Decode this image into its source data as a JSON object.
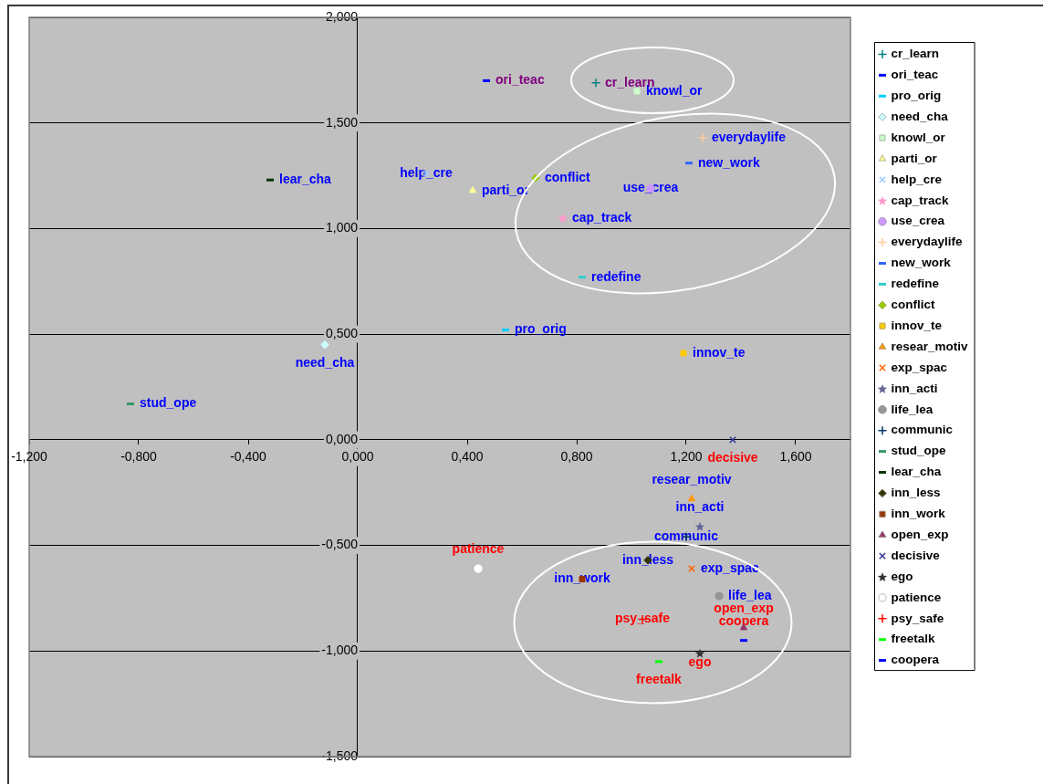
{
  "chart_data": {
    "type": "scatter",
    "xlim": [
      -1.2,
      1.8
    ],
    "ylim": [
      -1.5,
      2
    ],
    "xticks": [
      {
        "value": -1.2,
        "label": "-1,200"
      },
      {
        "value": -0.8,
        "label": "-0,800"
      },
      {
        "value": -0.4,
        "label": "-0,400"
      },
      {
        "value": 0,
        "label": "0,000"
      },
      {
        "value": 0.4,
        "label": "0,400"
      },
      {
        "value": 0.8,
        "label": "0,800"
      },
      {
        "value": 1.2,
        "label": "1,200"
      },
      {
        "value": 1.6,
        "label": "1,600"
      }
    ],
    "yticks": [
      {
        "value": -1.5,
        "label": "-1,500"
      },
      {
        "value": -1,
        "label": "-1,000"
      },
      {
        "value": -0.5,
        "label": "-0,500"
      },
      {
        "value": 0,
        "label": "0,000"
      },
      {
        "value": 0.5,
        "label": "0,500"
      },
      {
        "value": 1,
        "label": "1,000"
      },
      {
        "value": 1.5,
        "label": "1,500"
      },
      {
        "value": 2,
        "label": "2,000"
      }
    ],
    "grid": "y",
    "legend": "right",
    "series": [
      {
        "name": "cr_learn",
        "color": "#008080",
        "marker": "cross",
        "x": [
          0.87
        ],
        "values": [
          1.69
        ]
      },
      {
        "name": "ori_teac",
        "color": "#0000ff",
        "x": [
          0.47
        ],
        "values": [
          1.7
        ]
      },
      {
        "name": "pro_orig",
        "color": "#00ccff",
        "x": [
          0.54
        ],
        "values": [
          0.52
        ]
      },
      {
        "name": "need_cha",
        "color": "#ccffff",
        "marker": "diamond",
        "x": [
          -0.12
        ],
        "values": [
          0.45
        ]
      },
      {
        "name": "knowl_or",
        "color": "#ccffcc",
        "marker": "square",
        "x": [
          1.02
        ],
        "values": [
          1.65
        ]
      },
      {
        "name": "parti_or",
        "color": "#ffff99",
        "marker": "triangle",
        "x": [
          0.42
        ],
        "values": [
          1.18
        ]
      },
      {
        "name": "help_cre",
        "color": "#99ccff",
        "marker": "x",
        "x": [
          0.25
        ],
        "values": [
          1.26
        ]
      },
      {
        "name": "cap_track",
        "color": "#ff99cc",
        "marker": "star",
        "x": [
          0.75
        ],
        "values": [
          1.05
        ]
      },
      {
        "name": "use_crea",
        "color": "#cc99ff",
        "marker": "circle",
        "x": [
          1.07
        ],
        "values": [
          1.19
        ]
      },
      {
        "name": "everydaylife",
        "color": "#ffcc99",
        "marker": "cross",
        "x": [
          1.26
        ],
        "values": [
          1.43
        ]
      },
      {
        "name": "new_work",
        "color": "#3366ff",
        "x": [
          1.21
        ],
        "values": [
          1.31
        ]
      },
      {
        "name": "redefine",
        "color": "#33cccc",
        "x": [
          0.82
        ],
        "values": [
          0.77
        ]
      },
      {
        "name": "conflict",
        "color": "#99cc00",
        "marker": "diamond",
        "x": [
          0.65
        ],
        "values": [
          1.24
        ]
      },
      {
        "name": "innov_te",
        "color": "#ffcc00",
        "marker": "square",
        "x": [
          1.19
        ],
        "values": [
          0.41
        ]
      },
      {
        "name": "resear_motiv",
        "color": "#ff9900",
        "marker": "triangle",
        "x": [
          1.22
        ],
        "values": [
          -0.28
        ]
      },
      {
        "name": "exp_spac",
        "color": "#ff6600",
        "marker": "x",
        "x": [
          1.22
        ],
        "values": [
          -0.61
        ]
      },
      {
        "name": "inn_acti",
        "color": "#666699",
        "marker": "star",
        "x": [
          1.25
        ],
        "values": [
          -0.41
        ]
      },
      {
        "name": "life_lea",
        "color": "#969696",
        "marker": "circle",
        "x": [
          1.32
        ],
        "values": [
          -0.74
        ]
      },
      {
        "name": "communic",
        "color": "#003366",
        "marker": "cross",
        "x": [
          1.2
        ],
        "values": [
          -0.46
        ]
      },
      {
        "name": "stud_ope",
        "color": "#339966",
        "x": [
          -0.83
        ],
        "values": [
          0.17
        ]
      },
      {
        "name": "lear_cha",
        "color": "#003300",
        "x": [
          -0.32
        ],
        "values": [
          1.23
        ]
      },
      {
        "name": "inn_less",
        "color": "#333300",
        "marker": "diamond",
        "x": [
          1.06
        ],
        "values": [
          -0.57
        ]
      },
      {
        "name": "inn_work",
        "color": "#993300",
        "marker": "square",
        "x": [
          0.82
        ],
        "values": [
          -0.66
        ]
      },
      {
        "name": "open_exp",
        "color": "#993366",
        "marker": "triangle",
        "x": [
          1.41
        ],
        "values": [
          -0.89
        ]
      },
      {
        "name": "decisive",
        "color": "#333399",
        "marker": "x",
        "x": [
          1.37
        ],
        "values": [
          0
        ]
      },
      {
        "name": "ego",
        "color": "#333333",
        "marker": "star",
        "x": [
          1.25
        ],
        "values": [
          -1.01
        ]
      },
      {
        "name": "patience",
        "color": "#ffffff",
        "marker": "circle",
        "x": [
          0.44
        ],
        "values": [
          -0.61
        ]
      },
      {
        "name": "psy_safe",
        "color": "#ff0000",
        "marker": "cross",
        "x": [
          1.04
        ],
        "values": [
          -0.85
        ]
      },
      {
        "name": "freetalk",
        "color": "#00ff00",
        "x": [
          1.1
        ],
        "values": [
          -1.05
        ]
      },
      {
        "name": "coopera",
        "color": "#0000ff",
        "x": [
          1.41
        ],
        "values": [
          -0.95
        ]
      }
    ],
    "annotations": [
      {
        "text": "cr_learn",
        "x": 0.87,
        "y": 1.69
      },
      {
        "text": "ori_teac",
        "x": 0.47,
        "y": 1.7
      },
      {
        "text": "pro_orig",
        "x": 0.54,
        "y": 0.52
      },
      {
        "text": "need_cha",
        "x": -0.12,
        "y": 0.45
      },
      {
        "text": "knowl_or",
        "x": 1.02,
        "y": 1.65
      },
      {
        "text": "parti_or",
        "x": 0.42,
        "y": 1.18
      },
      {
        "text": "help_cre",
        "x": 0.25,
        "y": 1.26
      },
      {
        "text": "cap_track",
        "x": 0.75,
        "y": 1.05
      },
      {
        "text": "use_crea",
        "x": 1.07,
        "y": 1.19
      },
      {
        "text": "everydaylife",
        "x": 1.26,
        "y": 1.43
      },
      {
        "text": "new_work",
        "x": 1.21,
        "y": 1.31
      },
      {
        "text": "redefine",
        "x": 0.82,
        "y": 0.77
      },
      {
        "text": "conflict",
        "x": 0.65,
        "y": 1.24
      },
      {
        "text": "innov_te",
        "x": 1.19,
        "y": 0.41
      },
      {
        "text": "resear_motiv",
        "x": 1.22,
        "y": -0.28
      },
      {
        "text": "exp_spac",
        "x": 1.22,
        "y": -0.61
      },
      {
        "text": "inn_acti",
        "x": 1.25,
        "y": -0.41
      },
      {
        "text": "life_lea",
        "x": 1.32,
        "y": -0.74
      },
      {
        "text": "communic",
        "x": 1.2,
        "y": -0.46
      },
      {
        "text": "stud_ope",
        "x": -0.83,
        "y": 0.17
      },
      {
        "text": "lear_cha",
        "x": -0.32,
        "y": 1.23
      },
      {
        "text": "inn_less",
        "x": 1.06,
        "y": -0.57
      },
      {
        "text": "inn_work",
        "x": 0.82,
        "y": -0.66
      },
      {
        "text": "open_exp",
        "x": 1.41,
        "y": -0.89
      },
      {
        "text": "decisive",
        "x": 1.37,
        "y": 0
      },
      {
        "text": "ego",
        "x": 1.25,
        "y": -1.01
      },
      {
        "text": "patience",
        "x": 0.44,
        "y": -0.61
      },
      {
        "text": "psy_safe",
        "x": 1.04,
        "y": -0.85
      },
      {
        "text": "freetalk",
        "x": 1.1,
        "y": -1.05
      },
      {
        "text": "coopera",
        "x": 1.41,
        "y": -0.95
      }
    ]
  }
}
